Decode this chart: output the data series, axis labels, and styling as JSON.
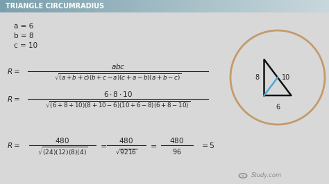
{
  "title": "TRIANGLE CIRCUMRADIUS",
  "bg_color": "#d8d8d8",
  "title_bg_left": "#7a9fad",
  "title_bg_right": "#c8d8dc",
  "title_color": "#ffffff",
  "text_color": "#222222",
  "vars": [
    "a = 6",
    "b = 8",
    "c = 10"
  ],
  "circle_color": "#c49a6c",
  "blue_line_color": "#4da6d9",
  "study_com_color": "#888888",
  "fig_w": 4.74,
  "fig_h": 2.66,
  "dpi": 100
}
